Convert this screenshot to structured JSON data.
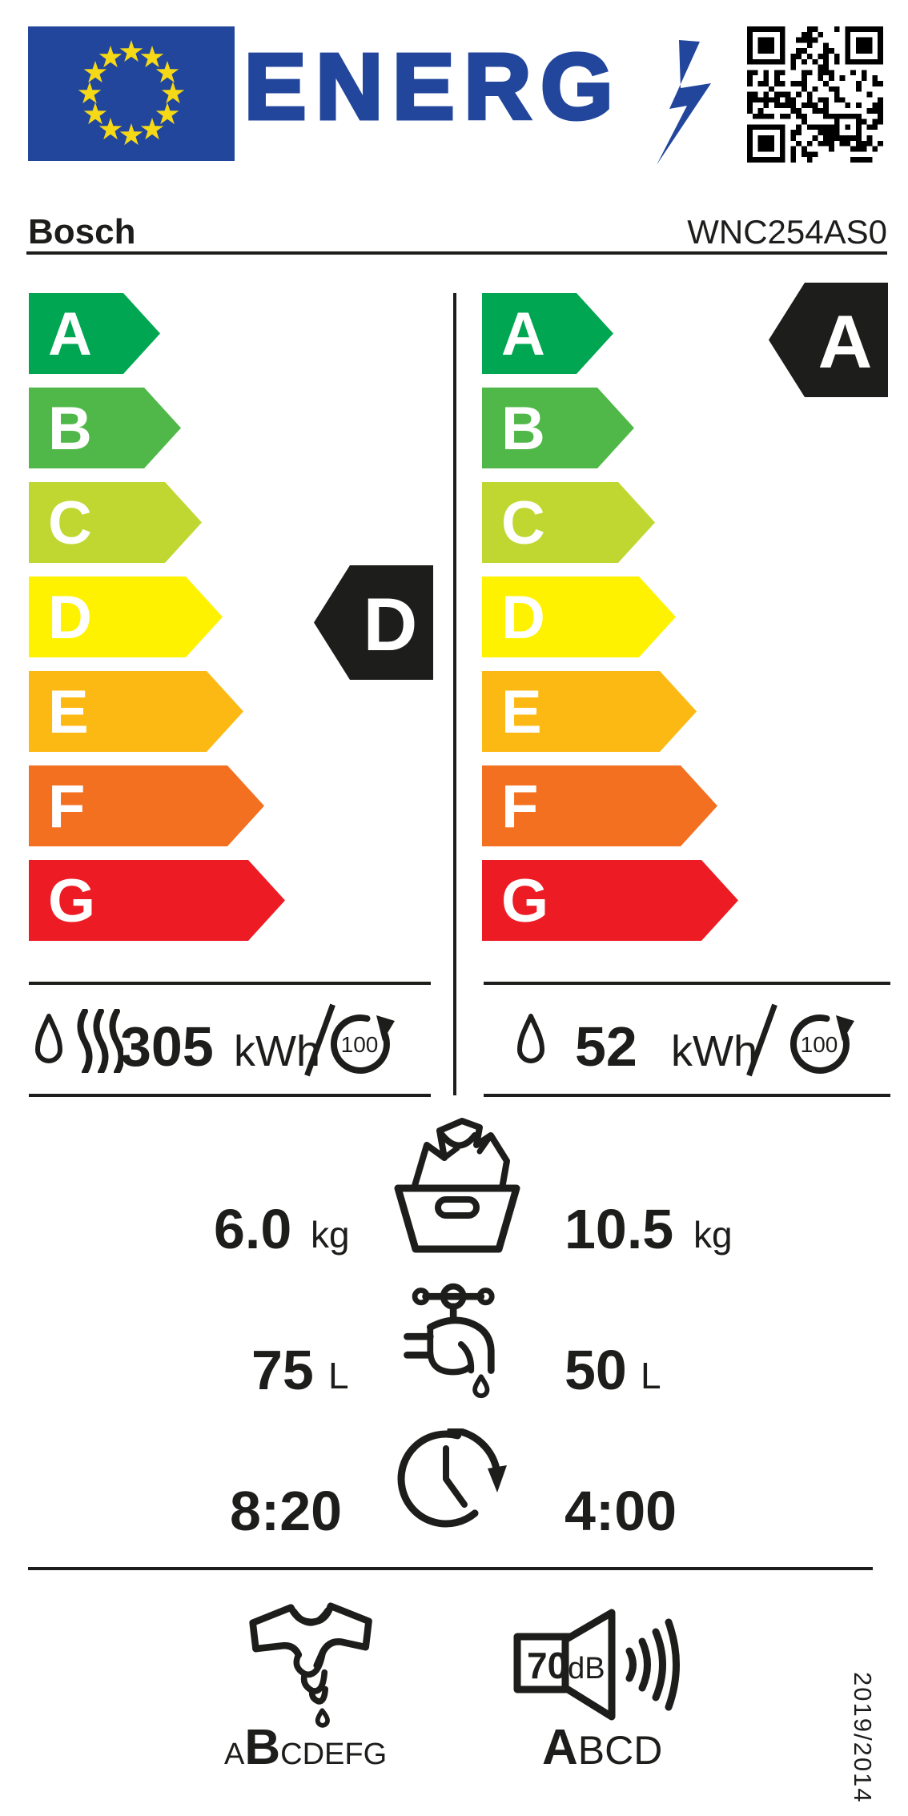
{
  "colors": {
    "eu_blue": "#22469C",
    "star_yellow": "#F5D917",
    "ink": "#1D1D1B",
    "white": "#FFFFFF"
  },
  "header": {
    "energ_wordmark": "ENERG",
    "brand": "Bosch",
    "model": "WNC254AS0",
    "icons": [
      "eu-flag-icon",
      "lightning-bolt-icon",
      "qr-code-icon"
    ]
  },
  "grades": [
    {
      "letter": "A",
      "color": "#00A651"
    },
    {
      "letter": "B",
      "color": "#50B848"
    },
    {
      "letter": "C",
      "color": "#BFD730"
    },
    {
      "letter": "D",
      "color": "#FFF200"
    },
    {
      "letter": "E",
      "color": "#FDB913"
    },
    {
      "letter": "F",
      "color": "#F37021"
    },
    {
      "letter": "G",
      "color": "#ED1C24"
    }
  ],
  "left_scale": {
    "description": "wash-and-dry-cycle",
    "rating": "D",
    "energy_value": "305",
    "energy_unit": "kWh",
    "per_cycles": "100",
    "icons": [
      "water-drop-icon",
      "heat-waves-icon",
      "cycles-100-icon"
    ]
  },
  "right_scale": {
    "description": "wash-cycle-only",
    "rating": "A",
    "energy_value": "52",
    "energy_unit": "kWh",
    "per_cycles": "100",
    "icons": [
      "water-drop-icon",
      "cycles-100-icon"
    ]
  },
  "capacity": {
    "icon": "laundry-basket-icon",
    "left_value": "6.0",
    "left_unit": "kg",
    "right_value": "10.5",
    "right_unit": "kg"
  },
  "water": {
    "icon": "tap-icon",
    "left_value": "75",
    "left_unit": "L",
    "right_value": "50",
    "right_unit": "L"
  },
  "duration": {
    "icon": "clock-icon",
    "left_value": "8:20",
    "right_value": "4:00"
  },
  "spin_class": {
    "icon": "wrung-shirt-icon",
    "before": "A",
    "rated": "B",
    "after": "CDEFG"
  },
  "noise": {
    "icon": "speaker-icon",
    "db_value": "70",
    "db_unit": "dB",
    "rated": "A",
    "after": "BCD"
  },
  "regulation": "2019/2014"
}
